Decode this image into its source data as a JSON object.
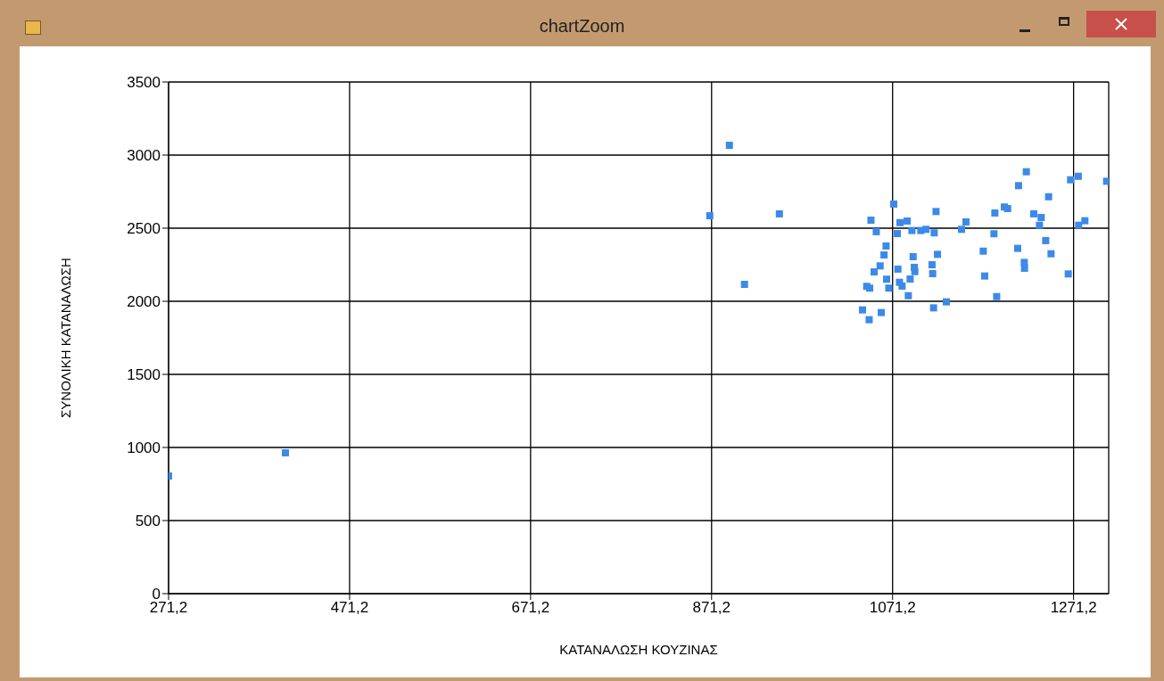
{
  "chart_data": {
    "type": "scatter",
    "title": "chartZoom",
    "xlabel": "ΚΑΤΑΝΑΛΩΣΗ ΚΟΥΖΙΝΑΣ",
    "ylabel": "ΣΥΝΟΛΙΚΗ ΚΑΤΑΝΑΛΩΣΗ",
    "xlim": [
      271.2,
      1310
    ],
    "xticks": [
      {
        "value": 271.2,
        "label": "271,2"
      },
      {
        "value": 471.2,
        "label": "471,2"
      },
      {
        "value": 671.2,
        "label": "671,2"
      },
      {
        "value": 871.2,
        "label": "871,2"
      },
      {
        "value": 1071.2,
        "label": "1071,2"
      },
      {
        "value": 1271.2,
        "label": "1271,2"
      }
    ],
    "ylim": [
      0,
      3500
    ],
    "yticks": [
      0,
      500,
      1000,
      1500,
      2000,
      2500,
      3000,
      3500
    ],
    "grid": true,
    "marker": "square",
    "series": [
      {
        "color": "#3c8ae8",
        "x": [
          271.2,
          400.3,
          869.2,
          890.9,
          907.6,
          946.1,
          1219.0,
          1267.9,
          1276.4,
          1307.7,
          1210.4,
          1243.6,
          1072.5,
          1119.2,
          1184.2,
          1194.7,
          1198.3,
          1227.2,
          1235.4,
          1047.3,
          1079.4,
          1087.3,
          1152.3,
          1283.7,
          1053.2,
          1076.4,
          1092.6,
          1102.4,
          1108.0,
          1117.2,
          1147.4,
          1183.2,
          1233.5,
          1276.8,
          1064.0,
          1061.7,
          1093.9,
          1120.8,
          1171.4,
          1209.4,
          1240.4,
          1246.3,
          1057.4,
          1050.8,
          1077.1,
          1095.2,
          1095.8,
          1114.8,
          1115.5,
          1216.7,
          1217.0,
          1265.3,
          1064.6,
          1090.6,
          1042.6,
          1045.9,
          1067.0,
          1078.8,
          1081.7,
          1173.0,
          1088.6,
          1186.2,
          1130.6,
          1038.0,
          1058.7,
          1045.3,
          1116.5
        ],
        "values": [
          805,
          963,
          2585,
          3067,
          2116,
          2598,
          2886,
          2831,
          2855,
          2821,
          2791,
          2715,
          2665,
          2614,
          2604,
          2645,
          2634,
          2598,
          2573,
          2555,
          2538,
          2549,
          2543,
          2551,
          2476,
          2463,
          2484,
          2484,
          2492,
          2468,
          2492,
          2462,
          2520,
          2520,
          2378,
          2317,
          2305,
          2321,
          2343,
          2362,
          2415,
          2325,
          2242,
          2201,
          2220,
          2232,
          2203,
          2250,
          2189,
          2266,
          2226,
          2187,
          2151,
          2152,
          2102,
          2090,
          2090,
          2130,
          2104,
          2173,
          2038,
          2032,
          1996,
          1941,
          1923,
          1874,
          1955
        ]
      }
    ]
  }
}
